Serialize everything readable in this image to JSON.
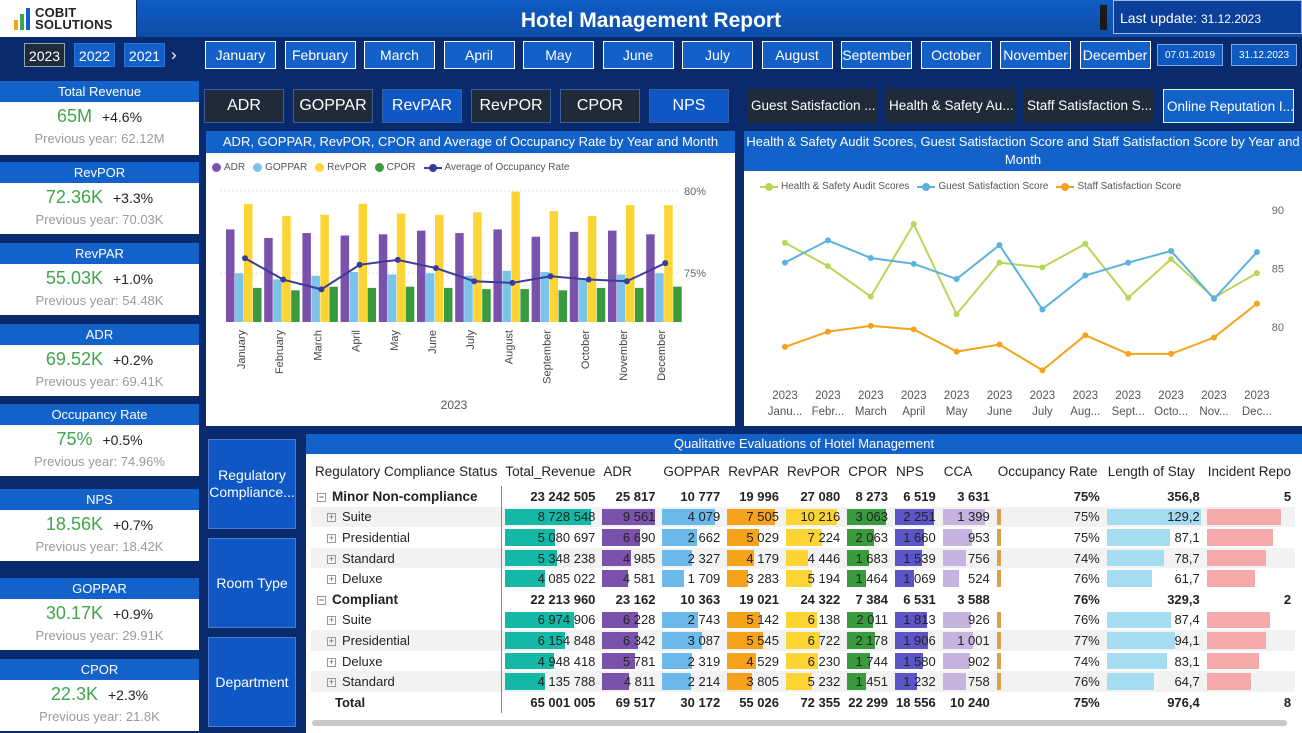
{
  "header": {
    "brand": "COBIT SOLUTIONS",
    "title": "Hotel Management Report",
    "last_update_label": "Last update:",
    "last_update_value": "31.12.2023"
  },
  "years": [
    {
      "label": "2023",
      "selected": true
    },
    {
      "label": "2022",
      "selected": false
    },
    {
      "label": "2021",
      "selected": false
    }
  ],
  "months": [
    "January",
    "February",
    "March",
    "April",
    "May",
    "June",
    "July",
    "August",
    "September",
    "October",
    "November",
    "December"
  ],
  "date_range": {
    "start": "07.01.2019",
    "end": "31.12.2023"
  },
  "kpis": [
    {
      "name": "Total Revenue",
      "value": "65M",
      "change": "+4.6%",
      "previous": "Previous year: 62.12M"
    },
    {
      "name": "RevPOR",
      "value": "72.36K",
      "change": "+3.3%",
      "previous": "Previous year: 70.03K"
    },
    {
      "name": "RevPAR",
      "value": "55.03K",
      "change": "+1.0%",
      "previous": "Previous year: 54.48K"
    },
    {
      "name": "ADR",
      "value": "69.52K",
      "change": "+0.2%",
      "previous": "Previous year: 69.41K"
    },
    {
      "name": "Occupancy Rate",
      "value": "75%",
      "change": "+0.5%",
      "previous": "Previous year: 74.96%"
    },
    {
      "name": "NPS",
      "value": "18.56K",
      "change": "+0.7%",
      "previous": "Previous year: 18.42K"
    },
    {
      "name": "GOPPAR",
      "value": "30.17K",
      "change": "+0.9%",
      "previous": "Previous year: 29.91K"
    },
    {
      "name": "CPOR",
      "value": "22.3K",
      "change": "+2.3%",
      "previous": "Previous year: 21.8K"
    }
  ],
  "metric_buttons": [
    {
      "label": "ADR",
      "selected": false
    },
    {
      "label": "GOPPAR",
      "selected": false
    },
    {
      "label": "RevPAR",
      "selected": true
    },
    {
      "label": "RevPOR",
      "selected": false
    },
    {
      "label": "CPOR",
      "selected": false
    },
    {
      "label": "NPS",
      "selected": true
    }
  ],
  "score_buttons": [
    {
      "label": "Guest Satisfaction ...",
      "selected": false
    },
    {
      "label": "Health & Safety Au...",
      "selected": false
    },
    {
      "label": "Staff Satisfaction S...",
      "selected": false
    },
    {
      "label": "Online Reputation I...",
      "selected": true
    }
  ],
  "side_nav": [
    "Regulatory Compliance...",
    "Room Type",
    "Department"
  ],
  "colors": {
    "adr": "#7b52ab",
    "goppar": "#7cc3ea",
    "revpor": "#fcd534",
    "cpor": "#3a9a3e",
    "occupancy": "#3b3b9a",
    "hs": "#b7d65a",
    "guest": "#5ab2dd",
    "staff": "#f7a21b"
  },
  "chart_data": [
    {
      "type": "bar",
      "title": "ADR, GOPPAR, RevPOR, CPOR and Average of Occupancy Rate by Year and Month",
      "xlabel": "2023",
      "categories": [
        "January",
        "February",
        "March",
        "April",
        "May",
        "June",
        "July",
        "August",
        "September",
        "October",
        "November",
        "December"
      ],
      "series": [
        {
          "name": "ADR",
          "values": [
            76,
            69,
            73,
            71,
            72,
            75,
            73,
            76,
            70,
            74,
            75,
            72
          ]
        },
        {
          "name": "GOPPAR",
          "values": [
            40,
            35,
            38,
            41,
            39,
            40,
            38,
            42,
            41,
            36,
            39,
            40
          ]
        },
        {
          "name": "RevPOR",
          "values": [
            97,
            87,
            88,
            97,
            89,
            88,
            90,
            107,
            91,
            87,
            96,
            96
          ]
        },
        {
          "name": "CPOR",
          "values": [
            28,
            26,
            29,
            28,
            29,
            28,
            27,
            27,
            26,
            28,
            28,
            29
          ]
        },
        {
          "name": "Average of Occupancy Rate",
          "values": [
            75.9,
            74.6,
            74.0,
            75.5,
            75.8,
            75.3,
            74.5,
            74.4,
            74.8,
            74.6,
            74.5,
            75.6
          ]
        }
      ],
      "y2_ticks": [
        "80%",
        "75%"
      ],
      "legend": "top"
    },
    {
      "type": "line",
      "title": "Health & Safety Audit Scores, Guest Satisfaction Score and Staff Satisfaction Score by Year and Month",
      "categories": [
        "2023 Janu...",
        "2023 Febr...",
        "2023 March",
        "2023 April",
        "2023 May",
        "2023 June",
        "2023 July",
        "2023 Aug...",
        "2023 Sept...",
        "2023 Octo...",
        "2023 Nov...",
        "2023 Dec..."
      ],
      "series": [
        {
          "name": "Health & Safety Audit Scores",
          "values": [
            87.2,
            85.2,
            82.6,
            88.8,
            81.1,
            85.5,
            85.1,
            87.1,
            82.5,
            85.8,
            82.5,
            84.6
          ]
        },
        {
          "name": "Guest Satisfaction Score",
          "values": [
            85.5,
            87.4,
            85.9,
            85.4,
            84.1,
            87.0,
            81.5,
            84.4,
            85.5,
            86.5,
            82.4,
            86.4
          ]
        },
        {
          "name": "Staff Satisfaction Score",
          "values": [
            78.3,
            79.6,
            80.1,
            79.8,
            77.9,
            78.5,
            76.3,
            79.3,
            77.7,
            77.7,
            79.1,
            82.0
          ]
        }
      ],
      "ylim": [
        75,
        90
      ],
      "y_ticks": [
        "90",
        "85",
        "80"
      ],
      "legend": "top"
    }
  ],
  "table": {
    "title": "Qualitative Evaluations of Hotel Management",
    "columns": [
      "Regulatory Compliance Status",
      "Total_Revenue",
      "ADR",
      "GOPPAR",
      "RevPAR",
      "RevPOR",
      "CPOR",
      "NPS",
      "CCA",
      "Occupancy Rate",
      "Length of Stay",
      "Incident Repo"
    ],
    "rows": [
      {
        "level": 0,
        "label": "Minor Non-compliance",
        "cells": [
          "23 242 505",
          "25 817",
          "10 777",
          "19 996",
          "27 080",
          "8 273",
          "6 519",
          "3 631",
          "75%",
          "356,8",
          "5"
        ],
        "frac": [
          0,
          0,
          0,
          0,
          0,
          0,
          0,
          0,
          0,
          0,
          0
        ]
      },
      {
        "level": 1,
        "label": "Suite",
        "cells": [
          "8 728 548",
          "9 561",
          "4 079",
          "7 505",
          "10 216",
          "3 063",
          "2 251",
          "1 399",
          "75%",
          "129,2",
          ""
        ],
        "frac": [
          1.0,
          0.98,
          0.94,
          0.95,
          0.98,
          0.98,
          0.98,
          0.88,
          0.3,
          1.0,
          1.0
        ]
      },
      {
        "level": 1,
        "label": "Presidential",
        "cells": [
          "5 080 697",
          "6 690",
          "2 662",
          "5 029",
          "7 224",
          "2 063",
          "1 660",
          "953",
          "75%",
          "87,1",
          ""
        ],
        "frac": [
          0.58,
          0.7,
          0.61,
          0.64,
          0.7,
          0.66,
          0.72,
          0.6,
          0.3,
          0.67,
          0.9
        ]
      },
      {
        "level": 1,
        "label": "Standard",
        "cells": [
          "5 348 238",
          "4 985",
          "2 327",
          "4 179",
          "4 446",
          "1 683",
          "1 539",
          "756",
          "74%",
          "78,7",
          ""
        ],
        "frac": [
          0.61,
          0.52,
          0.53,
          0.53,
          0.43,
          0.54,
          0.67,
          0.48,
          0.3,
          0.61,
          0.8
        ]
      },
      {
        "level": 1,
        "label": "Deluxe",
        "cells": [
          "4 085 022",
          "4 581",
          "1 709",
          "3 283",
          "5 194",
          "1 464",
          "1 069",
          "524",
          "76%",
          "61,7",
          ""
        ],
        "frac": [
          0.47,
          0.48,
          0.39,
          0.42,
          0.5,
          0.47,
          0.47,
          0.33,
          0.3,
          0.48,
          0.65
        ]
      },
      {
        "level": 0,
        "label": "Compliant",
        "cells": [
          "22 213 960",
          "23 162",
          "10 363",
          "19 021",
          "24 322",
          "7 384",
          "6 531",
          "3 588",
          "76%",
          "329,3",
          "2"
        ],
        "frac": [
          0,
          0,
          0,
          0,
          0,
          0,
          0,
          0,
          0,
          0,
          0
        ]
      },
      {
        "level": 1,
        "label": "Suite",
        "cells": [
          "6 974 906",
          "6 228",
          "2 743",
          "5 142",
          "6 138",
          "2 011",
          "1 813",
          "926",
          "76%",
          "87,4",
          ""
        ],
        "frac": [
          0.8,
          0.65,
          0.63,
          0.66,
          0.6,
          0.64,
          0.79,
          0.58,
          0.3,
          0.68,
          0.85
        ]
      },
      {
        "level": 1,
        "label": "Presidential",
        "cells": [
          "6 154 848",
          "6 342",
          "3 087",
          "5 545",
          "6 722",
          "2 178",
          "1 906",
          "1 001",
          "77%",
          "94,1",
          ""
        ],
        "frac": [
          0.7,
          0.66,
          0.71,
          0.71,
          0.66,
          0.7,
          0.83,
          0.63,
          0.3,
          0.73,
          0.8
        ]
      },
      {
        "level": 1,
        "label": "Deluxe",
        "cells": [
          "4 948 418",
          "5 781",
          "2 319",
          "4 529",
          "6 230",
          "1 744",
          "1 580",
          "902",
          "74%",
          "83,1",
          ""
        ],
        "frac": [
          0.57,
          0.6,
          0.53,
          0.58,
          0.61,
          0.56,
          0.69,
          0.57,
          0.3,
          0.64,
          0.7
        ]
      },
      {
        "level": 1,
        "label": "Standard",
        "cells": [
          "4 135 788",
          "4 811",
          "2 214",
          "3 805",
          "5 232",
          "1 451",
          "1 232",
          "758",
          "76%",
          "64,7",
          ""
        ],
        "frac": [
          0.47,
          0.5,
          0.51,
          0.49,
          0.51,
          0.46,
          0.54,
          0.48,
          0.3,
          0.5,
          0.6
        ]
      }
    ],
    "total": {
      "label": "Total",
      "cells": [
        "65 001 005",
        "69 517",
        "30 172",
        "55 026",
        "72 355",
        "22 299",
        "18 556",
        "10 240",
        "75%",
        "976,4",
        "8"
      ]
    }
  }
}
